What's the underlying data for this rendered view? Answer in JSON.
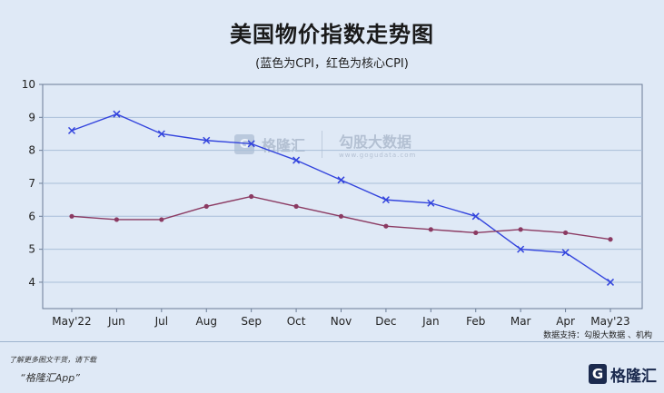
{
  "title": "美国物价指数走势图",
  "subtitle": "(蓝色为CPI，红色为核心CPI)",
  "source": "数据支持：勾股大数据 、机构",
  "promo": {
    "line1": "了解更多图文干货，请下载",
    "line2": "“格隆汇App”"
  },
  "logo": {
    "mark": "G",
    "text": "格隆汇"
  },
  "watermark": {
    "mark": "G",
    "text_left": "格隆汇",
    "text_right": "勾股大数据",
    "url": "www.gogudata.com"
  },
  "colors": {
    "background": "#dfe9f6",
    "cpi": "#3344dd",
    "core_cpi": "#8b3a62",
    "grid": "#a9bed8",
    "axis": "#6b7c96"
  },
  "chart_data": {
    "type": "line",
    "title": "美国物价指数走势图",
    "subtitle": "(蓝色为CPI，红色为核心CPI)",
    "categories": [
      "May'22",
      "Jun",
      "Jul",
      "Aug",
      "Sep",
      "Oct",
      "Nov",
      "Dec",
      "Jan",
      "Feb",
      "Mar",
      "Apr",
      "May'23"
    ],
    "series": [
      {
        "name": "CPI",
        "color": "#3344dd",
        "marker": "x",
        "values": [
          8.6,
          9.1,
          8.5,
          8.3,
          8.2,
          7.7,
          7.1,
          6.5,
          6.4,
          6.0,
          5.0,
          4.9,
          4.0
        ]
      },
      {
        "name": "核心CPI",
        "color": "#8b3a62",
        "marker": "dot",
        "values": [
          6.0,
          5.9,
          5.9,
          6.3,
          6.6,
          6.3,
          6.0,
          5.7,
          5.6,
          5.5,
          5.6,
          5.5,
          5.3
        ]
      }
    ],
    "yticks": [
      4,
      5,
      6,
      7,
      8,
      9,
      10
    ],
    "ylim": [
      3.2,
      10
    ],
    "grid": true,
    "legend": "none"
  }
}
